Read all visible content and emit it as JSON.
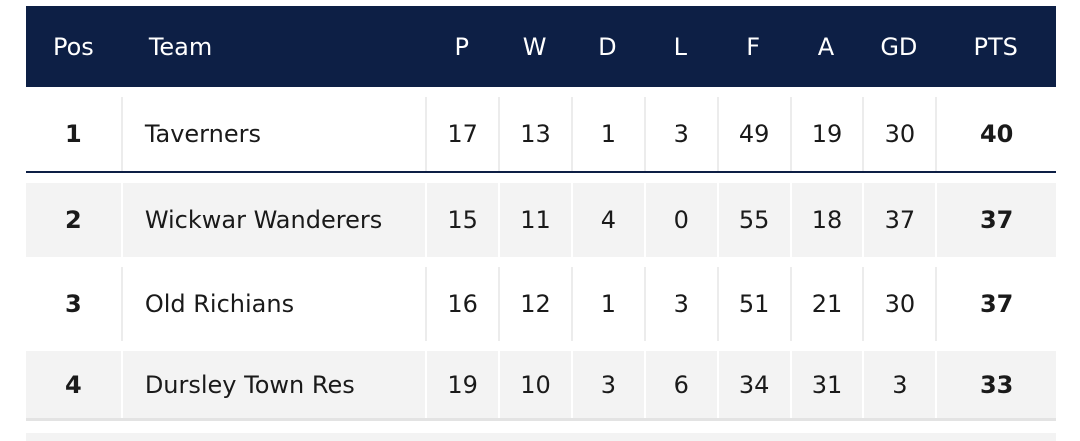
{
  "columns": {
    "pos": "Pos",
    "team": "Team",
    "p": "P",
    "w": "W",
    "d": "D",
    "l": "L",
    "f": "F",
    "a": "A",
    "gd": "GD",
    "pts": "PTS"
  },
  "rows": [
    {
      "pos": "1",
      "team": "Taverners",
      "p": "17",
      "w": "13",
      "d": "1",
      "l": "3",
      "f": "49",
      "a": "19",
      "gd": "30",
      "pts": "40"
    },
    {
      "pos": "2",
      "team": "Wickwar Wanderers",
      "p": "15",
      "w": "11",
      "d": "4",
      "l": "0",
      "f": "55",
      "a": "18",
      "gd": "37",
      "pts": "37"
    },
    {
      "pos": "3",
      "team": "Old Richians",
      "p": "16",
      "w": "12",
      "d": "1",
      "l": "3",
      "f": "51",
      "a": "21",
      "gd": "30",
      "pts": "37"
    },
    {
      "pos": "4",
      "team": "Dursley Town Res",
      "p": "19",
      "w": "10",
      "d": "3",
      "l": "6",
      "f": "34",
      "a": "31",
      "gd": "3",
      "pts": "33"
    }
  ],
  "colors": {
    "header_bg": "#0d1f45",
    "header_text": "#ffffff",
    "row_alt_bg": "#f3f3f3"
  }
}
